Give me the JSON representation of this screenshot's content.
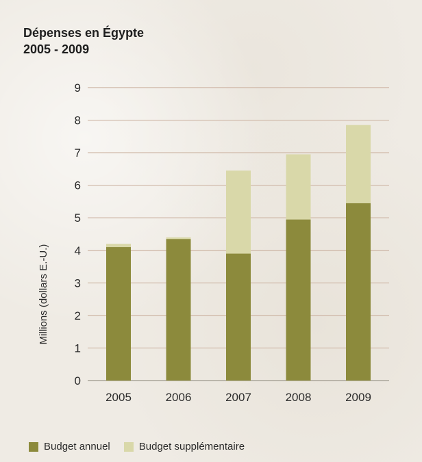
{
  "chart_data": {
    "type": "bar",
    "stacked": true,
    "title_lines": [
      "Dépenses en Égypte",
      "2005 - 2009"
    ],
    "xlabel": "",
    "ylabel": "Millions (dollars E.-U.)",
    "categories": [
      "2005",
      "2006",
      "2007",
      "2008",
      "2009"
    ],
    "series": [
      {
        "name": "Budget annuel",
        "color": "#8c8a3c",
        "values": [
          4.1,
          4.35,
          3.9,
          4.95,
          5.45
        ]
      },
      {
        "name": "Budget supplémentaire",
        "color": "#d9d8a9",
        "values": [
          0.1,
          0.05,
          2.55,
          2.0,
          2.4
        ]
      }
    ],
    "ylim": [
      0,
      9
    ],
    "yticks": [
      "0",
      "1",
      "2",
      "3",
      "4",
      "5",
      "6",
      "7",
      "8",
      "9"
    ],
    "grid": true,
    "legend": "bottom-left"
  }
}
